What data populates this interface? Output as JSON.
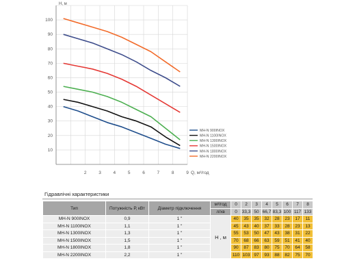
{
  "chart_data": {
    "type": "line",
    "xlabel": "Q, м³/год",
    "ylabel": "H, м",
    "xlim": [
      0,
      9
    ],
    "ylim": [
      0,
      110
    ],
    "x_ticks": [
      "2",
      "3",
      "4",
      "5",
      "6",
      "7",
      "8",
      "9"
    ],
    "y_ticks": [
      "10",
      "20",
      "30",
      "40",
      "50",
      "60",
      "70",
      "80",
      "90",
      "100"
    ],
    "grid": true,
    "legend_position": "right",
    "series": [
      {
        "name": "MH-N 900INOX",
        "color": "#1f4e8c",
        "x": [
          0.5,
          1.5,
          2.5,
          3.5,
          4.5,
          5.5,
          6.5,
          7.5,
          8.5
        ],
        "y": [
          40,
          37,
          33,
          29,
          26,
          22,
          18,
          14,
          11
        ]
      },
      {
        "name": "MH-N 1100INOX",
        "color": "#111111",
        "x": [
          0.5,
          1.5,
          2.5,
          3.5,
          4.5,
          5.5,
          6.5,
          7.5,
          8.5
        ],
        "y": [
          45,
          43,
          40,
          37,
          33,
          30,
          26,
          19,
          13
        ]
      },
      {
        "name": "MH-N 1300INOX",
        "color": "#4caf50",
        "x": [
          0.5,
          1.5,
          2.5,
          3.5,
          4.5,
          5.5,
          6.5,
          7.5,
          8.5
        ],
        "y": [
          54,
          52,
          50,
          47,
          43,
          38,
          33,
          25,
          17
        ]
      },
      {
        "name": "MH-N 1500INOX",
        "color": "#e53935",
        "x": [
          0.5,
          1.5,
          2.5,
          3.5,
          4.5,
          5.5,
          6.5,
          7.5,
          8.5
        ],
        "y": [
          70,
          68,
          66,
          63,
          59,
          54,
          48,
          42,
          36
        ]
      },
      {
        "name": "MH-N 1800INOX",
        "color": "#3f4e8c",
        "x": [
          0.5,
          1.5,
          2.5,
          3.5,
          4.5,
          5.5,
          6.5,
          7.5,
          8.5
        ],
        "y": [
          90,
          87,
          84,
          80,
          76,
          71,
          65,
          60,
          54
        ]
      },
      {
        "name": "MH-N 2200INOX",
        "color": "#f26b2a",
        "x": [
          0.5,
          1.5,
          2.5,
          3.5,
          4.5,
          5.5,
          6.5,
          7.5,
          8.5
        ],
        "y": [
          101,
          98,
          95,
          92,
          88,
          83,
          78,
          71,
          64
        ]
      }
    ]
  },
  "table": {
    "title": "Гідравлічні характеристики",
    "col_type": "Тип",
    "col_power": "Потужність  Р, кВт",
    "col_diameter": "Діаметр підключення",
    "q_unit_top": "м³/год",
    "q_unit_bottom": "л/хв",
    "h_label": "Н , м",
    "q_m3h": [
      "0",
      "2",
      "3",
      "4",
      "5",
      "6",
      "7",
      "8"
    ],
    "q_lmin": [
      "0",
      "33,3",
      "50",
      "66,7",
      "83,3",
      "100",
      "117",
      "133"
    ],
    "rows": [
      {
        "type": "MH-N 900INOX",
        "power": "0,9",
        "diameter": "1 \"",
        "heads": [
          "40",
          "35",
          "35",
          "32",
          "28",
          "23",
          "17",
          "11"
        ]
      },
      {
        "type": "MH-N 1100INOX",
        "power": "1,1",
        "diameter": "1 \"",
        "heads": [
          "45",
          "43",
          "40",
          "37",
          "33",
          "28",
          "23",
          "13"
        ]
      },
      {
        "type": "MH-N 1300INOX",
        "power": "1,3",
        "diameter": "1 \"",
        "heads": [
          "55",
          "53",
          "50",
          "47",
          "43",
          "38",
          "31",
          "22"
        ]
      },
      {
        "type": "MH-N 1500INOX",
        "power": "1,5",
        "diameter": "1 \"",
        "heads": [
          "70",
          "68",
          "66",
          "63",
          "59",
          "51",
          "41",
          "40"
        ]
      },
      {
        "type": "MH-N 1800INOX",
        "power": "1,8",
        "diameter": "1 \"",
        "heads": [
          "90",
          "87",
          "83",
          "80",
          "75",
          "70",
          "64",
          "58"
        ]
      },
      {
        "type": "MH-N 2200INOX",
        "power": "2,2",
        "diameter": "1 \"",
        "heads": [
          "110",
          "103",
          "97",
          "93",
          "88",
          "82",
          "75",
          "70"
        ]
      }
    ]
  }
}
